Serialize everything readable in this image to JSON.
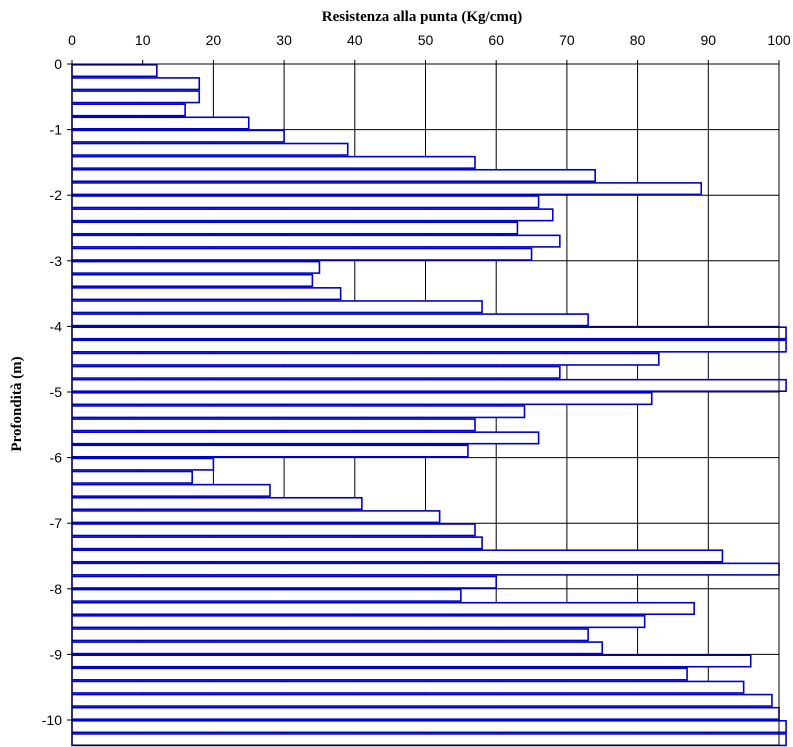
{
  "chart_data": {
    "type": "bar",
    "orientation": "horizontal",
    "title": "",
    "xlabel": "Resistenza alla punta (Kg/cmq)",
    "ylabel": "Profondità (m)",
    "xlim": [
      0,
      100
    ],
    "ylim": [
      -10.5,
      0
    ],
    "x_ticks": [
      0,
      10,
      20,
      30,
      40,
      50,
      60,
      70,
      80,
      90,
      100
    ],
    "y_ticks": [
      0,
      -1,
      -2,
      -3,
      -4,
      -5,
      -6,
      -7,
      -8,
      -9,
      -10
    ],
    "y_tick_labels": [
      "0",
      "-1",
      "-2",
      "-3",
      "-4",
      "-5",
      "-6",
      "-7",
      "-8",
      "-9",
      "-10"
    ],
    "grid": true,
    "bar_color": "#0000cc",
    "step": 0.2,
    "depths": [
      -0.1,
      -0.3,
      -0.5,
      -0.7,
      -0.9,
      -1.1,
      -1.3,
      -1.5,
      -1.7,
      -1.9,
      -2.1,
      -2.3,
      -2.5,
      -2.7,
      -2.9,
      -3.1,
      -3.3,
      -3.5,
      -3.7,
      -3.9,
      -4.1,
      -4.3,
      -4.5,
      -4.7,
      -4.9,
      -5.1,
      -5.3,
      -5.5,
      -5.7,
      -5.9,
      -6.1,
      -6.3,
      -6.5,
      -6.7,
      -6.9,
      -7.1,
      -7.3,
      -7.5,
      -7.7,
      -7.9,
      -8.1,
      -8.3,
      -8.5,
      -8.7,
      -8.9,
      -9.1,
      -9.3,
      -9.5,
      -9.7,
      -9.9,
      -10.1,
      -10.3
    ],
    "values": [
      12,
      18,
      18,
      16,
      25,
      30,
      39,
      57,
      74,
      89,
      66,
      68,
      63,
      69,
      65,
      35,
      34,
      38,
      58,
      73,
      101,
      101,
      83,
      69,
      101,
      82,
      64,
      57,
      66,
      56,
      20,
      17,
      28,
      41,
      52,
      57,
      58,
      92,
      100,
      60,
      55,
      88,
      81,
      73,
      75,
      96,
      87,
      95,
      99,
      100,
      101,
      101
    ]
  }
}
